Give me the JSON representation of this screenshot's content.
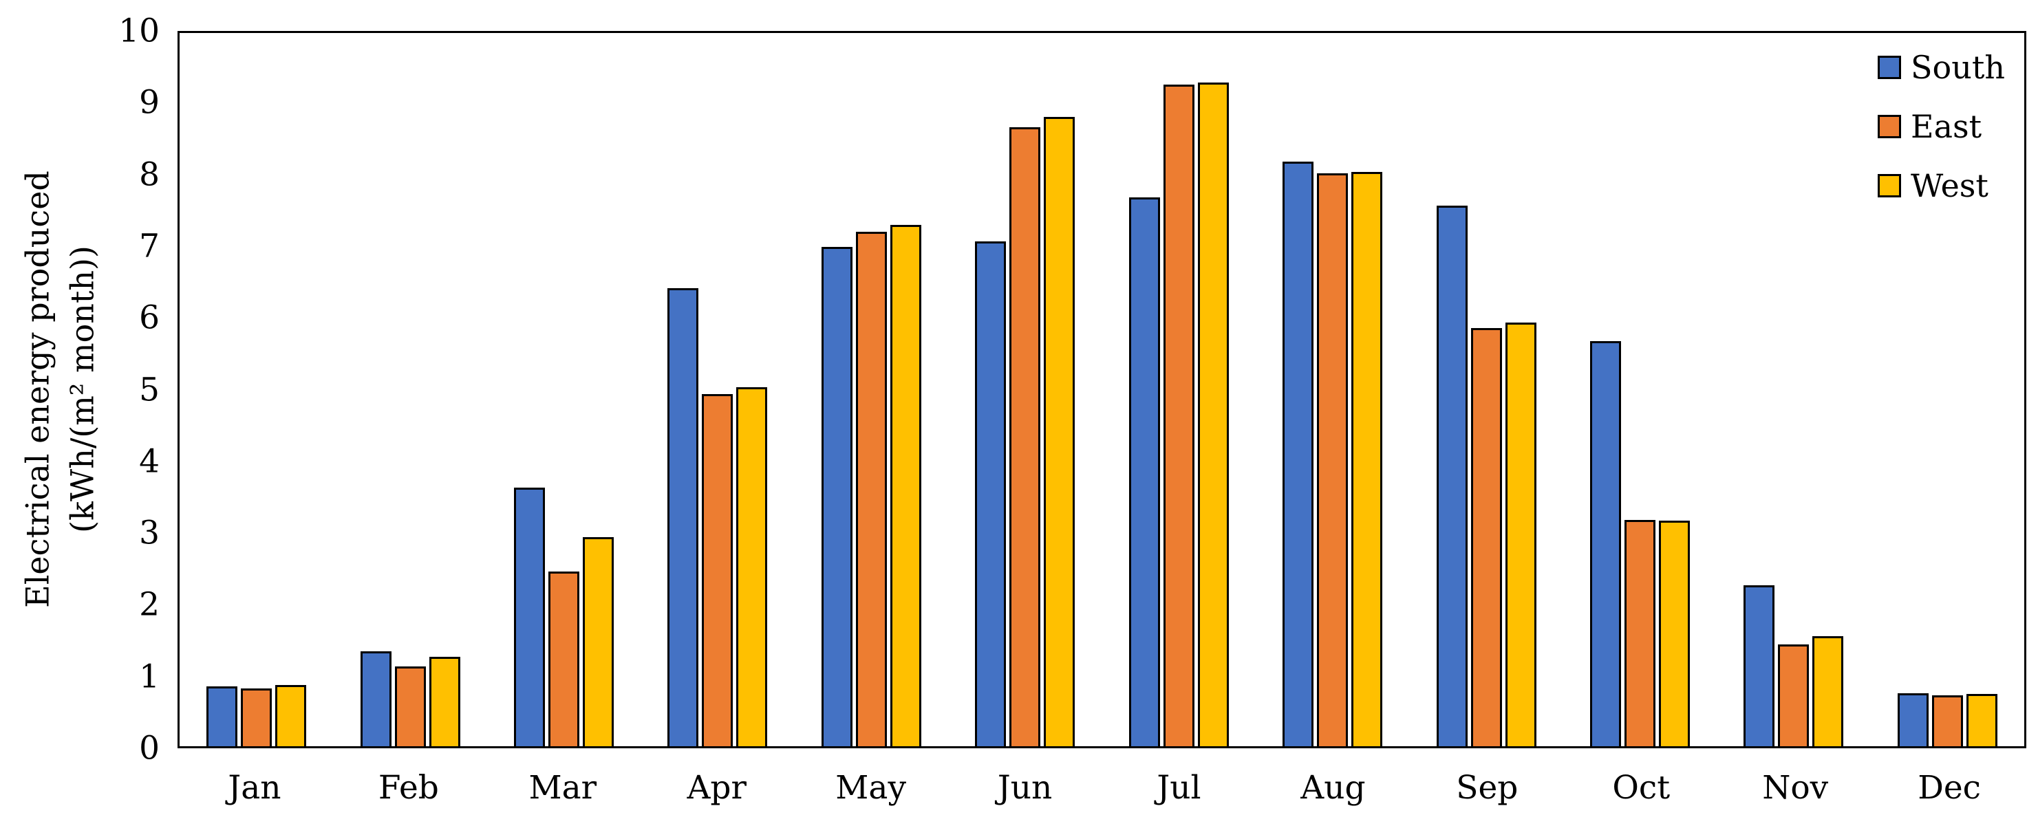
{
  "chart_data": {
    "type": "bar",
    "title": "",
    "ylabel_line1": "Electrical energy produced",
    "ylabel_line2": "(kWh/(m² month))",
    "xlabel": "",
    "categories": [
      "Jan",
      "Feb",
      "Mar",
      "Apr",
      "May",
      "Jun",
      "Jul",
      "Aug",
      "Sep",
      "Oct",
      "Nov",
      "Dec"
    ],
    "series": [
      {
        "name": "South",
        "color": "#4472C4",
        "values": [
          0.84,
          1.33,
          3.63,
          6.42,
          7.0,
          7.08,
          7.7,
          8.2,
          7.58,
          5.68,
          2.26,
          0.74
        ]
      },
      {
        "name": "East",
        "color": "#ED7D31",
        "values": [
          0.81,
          1.12,
          2.45,
          4.94,
          7.21,
          8.68,
          9.28,
          8.03,
          5.86,
          3.17,
          1.43,
          0.71
        ]
      },
      {
        "name": "West",
        "color": "#FFC000",
        "values": [
          0.86,
          1.25,
          2.93,
          5.03,
          7.31,
          8.82,
          9.31,
          8.05,
          5.94,
          3.16,
          1.54,
          0.73
        ]
      }
    ],
    "ylim": [
      0,
      10
    ],
    "yticks": [
      0,
      1,
      2,
      3,
      4,
      5,
      6,
      7,
      8,
      9,
      10
    ],
    "grid": false,
    "legend_position": "top-right-inside",
    "bar_outline_color": "#000000",
    "axis_color": "#000000",
    "background_color": "#FFFFFF"
  }
}
